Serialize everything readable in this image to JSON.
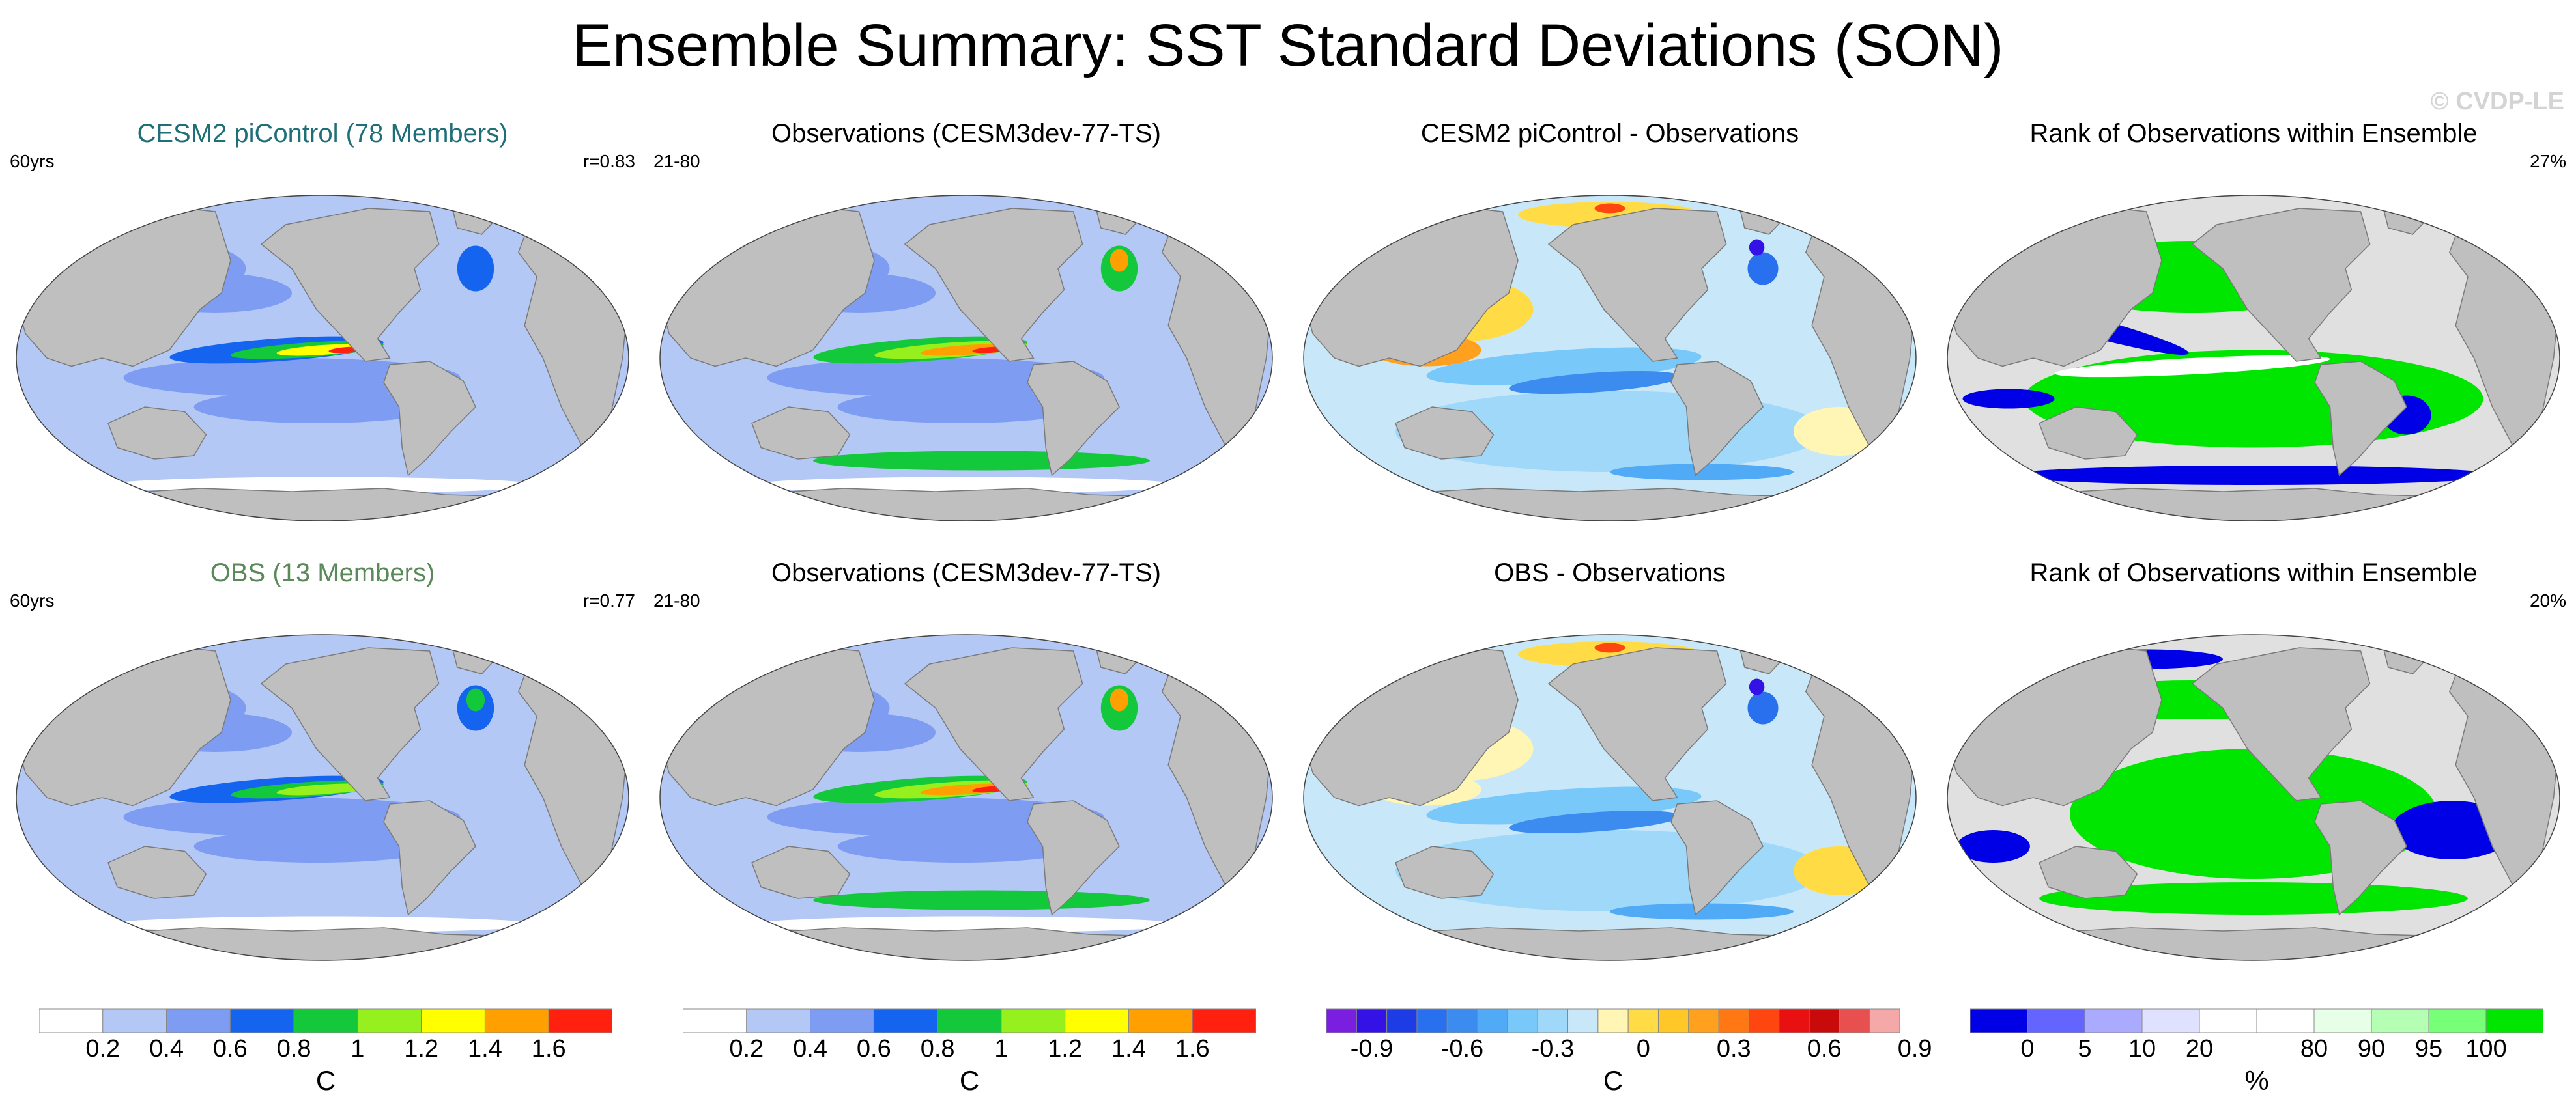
{
  "title": "Ensemble Summary: SST Standard Deviations (SON)",
  "watermark": "© CVDP-LE",
  "panels": [
    {
      "title": "CESM2 piControl (78 Members)",
      "title_color": "#1f6f78",
      "left": "60yrs",
      "right": "r=0.83",
      "field": "std_model"
    },
    {
      "title": "Observations (CESM3dev-77-TS)",
      "title_color": "#000000",
      "left": "21-80",
      "right": "",
      "field": "std_obs"
    },
    {
      "title": "CESM2 piControl - Observations",
      "title_color": "#000000",
      "left": "",
      "right": "",
      "field": "diff_a"
    },
    {
      "title": "Rank of Observations within Ensemble",
      "title_color": "#000000",
      "left": "",
      "right": "27%",
      "field": "rank_a"
    },
    {
      "title": "OBS (13 Members)",
      "title_color": "#5a8a5a",
      "left": "60yrs",
      "right": "r=0.77",
      "field": "std_obs_ens"
    },
    {
      "title": "Observations (CESM3dev-77-TS)",
      "title_color": "#000000",
      "left": "21-80",
      "right": "",
      "field": "std_obs"
    },
    {
      "title": "OBS - Observations",
      "title_color": "#000000",
      "left": "",
      "right": "",
      "field": "diff_b"
    },
    {
      "title": "Rank of Observations within Ensemble",
      "title_color": "#000000",
      "left": "",
      "right": "20%",
      "field": "rank_b"
    }
  ],
  "colorbars": [
    {
      "unit": "C",
      "colors": [
        "#ffffff",
        "#b4c8f5",
        "#7d9cf2",
        "#1464f0",
        "#14c83c",
        "#96f01e",
        "#ffff00",
        "#ffa000",
        "#ff2010"
      ],
      "ticks": [
        "0.2",
        "0.4",
        "0.6",
        "0.8",
        "1",
        "1.2",
        "1.4",
        "1.6"
      ]
    },
    {
      "unit": "C",
      "colors": [
        "#ffffff",
        "#b4c8f5",
        "#7d9cf2",
        "#1464f0",
        "#14c83c",
        "#96f01e",
        "#ffff00",
        "#ffa000",
        "#ff2010"
      ],
      "ticks": [
        "0.2",
        "0.4",
        "0.6",
        "0.8",
        "1",
        "1.2",
        "1.4",
        "1.6"
      ]
    },
    {
      "unit": "C",
      "colors": [
        "#7a1fe0",
        "#3412e6",
        "#1e3ce6",
        "#2870ee",
        "#3c8cf0",
        "#50aaf5",
        "#78c8fa",
        "#a0d8fa",
        "#c8e8fa",
        "#fff5b4",
        "#ffdc46",
        "#ffc828",
        "#ffa01e",
        "#ff7814",
        "#ff4610",
        "#e81010",
        "#c80a0a",
        "#e85050",
        "#f5a8a8"
      ],
      "ticks": [
        "-0.9",
        "-0.6",
        "-0.3",
        "0",
        "0.3",
        "0.6",
        "0.9"
      ],
      "tick_slots": [
        1.5,
        4.5,
        7.5,
        10.5,
        13.5,
        16.5,
        19.5
      ]
    },
    {
      "unit": "%",
      "colors": [
        "#0000e6",
        "#6464ff",
        "#aaaaff",
        "#e0e0ff",
        "#ffffff",
        "#ffffff",
        "#e6ffe6",
        "#b4ffb4",
        "#78ff78",
        "#00e600"
      ],
      "ticks": [
        "0",
        "5",
        "10",
        "20",
        "80",
        "90",
        "95",
        "100"
      ],
      "tick_slots": [
        1,
        2,
        3,
        4,
        6,
        7,
        8,
        9
      ]
    }
  ],
  "chart_data": [
    {
      "type": "map",
      "panel": "CESM2 piControl (78 Members)",
      "variable": "SST standard deviation",
      "units": "C",
      "levels": [
        0.2,
        0.4,
        0.6,
        0.8,
        1,
        1.2,
        1.4,
        1.6
      ],
      "r": 0.83,
      "period": "60yrs"
    },
    {
      "type": "map",
      "panel": "Observations (CESM3dev-77-TS)",
      "variable": "SST standard deviation",
      "units": "C",
      "levels": [
        0.2,
        0.4,
        0.6,
        0.8,
        1,
        1.2,
        1.4,
        1.6
      ],
      "period": "21-80"
    },
    {
      "type": "map",
      "panel": "CESM2 piControl - Observations",
      "variable": "SST standard deviation difference",
      "units": "C",
      "levels": [
        -0.9,
        -0.6,
        -0.3,
        0,
        0.3,
        0.6,
        0.9
      ]
    },
    {
      "type": "map",
      "panel": "Rank of Observations within Ensemble",
      "units": "%",
      "levels": [
        0,
        5,
        10,
        20,
        80,
        90,
        95,
        100
      ],
      "summary_percent": 27
    },
    {
      "type": "map",
      "panel": "OBS (13 Members)",
      "variable": "SST standard deviation",
      "units": "C",
      "levels": [
        0.2,
        0.4,
        0.6,
        0.8,
        1,
        1.2,
        1.4,
        1.6
      ],
      "r": 0.77,
      "period": "60yrs"
    },
    {
      "type": "map",
      "panel": "Observations (CESM3dev-77-TS)",
      "variable": "SST standard deviation",
      "units": "C",
      "levels": [
        0.2,
        0.4,
        0.6,
        0.8,
        1,
        1.2,
        1.4,
        1.6
      ],
      "period": "21-80"
    },
    {
      "type": "map",
      "panel": "OBS - Observations",
      "variable": "SST standard deviation difference",
      "units": "C",
      "levels": [
        -0.9,
        -0.6,
        -0.3,
        0,
        0.3,
        0.6,
        0.9
      ]
    },
    {
      "type": "map",
      "panel": "Rank of Observations within Ensemble",
      "units": "%",
      "levels": [
        0,
        5,
        10,
        20,
        80,
        90,
        95,
        100
      ],
      "summary_percent": 20
    }
  ]
}
